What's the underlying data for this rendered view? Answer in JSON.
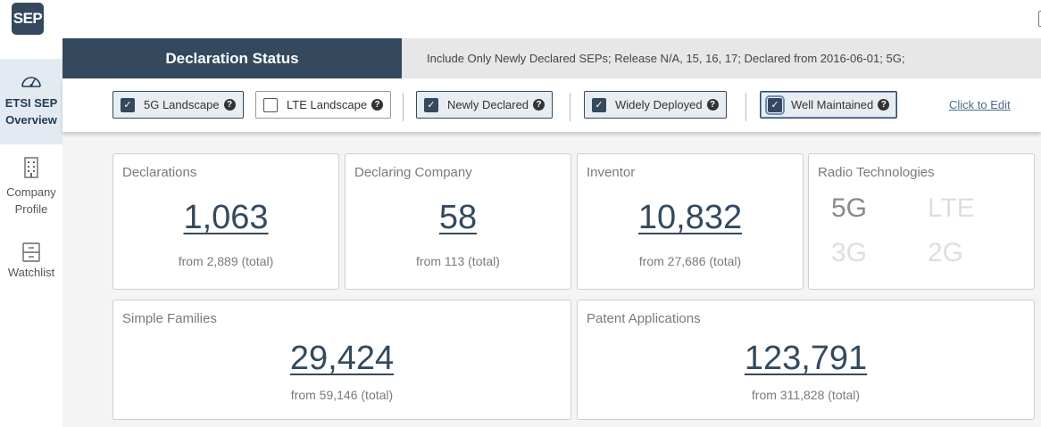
{
  "app": {
    "logo_text": "SEP"
  },
  "sidebar": {
    "items": [
      {
        "label_line1": "ETSI SEP",
        "label_line2": "Overview",
        "icon": "gauge-icon"
      },
      {
        "label_line1": "Company",
        "label_line2": "Profile",
        "icon": "building-icon"
      },
      {
        "label_line1": "Watchlist",
        "label_line2": "",
        "icon": "cabinet-icon"
      }
    ]
  },
  "status": {
    "title": "Declaration Status",
    "description": "Include Only Newly Declared SEPs; Release N/A, 15, 16, 17; Declared from 2016-06-01; 5G;"
  },
  "filters": {
    "chips": [
      {
        "label": "5G Landscape",
        "checked": true
      },
      {
        "label": "LTE Landscape",
        "checked": false
      },
      {
        "label": "Newly Declared",
        "checked": true
      },
      {
        "label": "Widely Deployed",
        "checked": true
      },
      {
        "label": "Well Maintained",
        "checked": true
      }
    ],
    "edit_link": "Click to Edit"
  },
  "cards": {
    "declarations": {
      "label": "Declarations",
      "value": "1,063",
      "sub": "from 2,889 (total)"
    },
    "declaring_company": {
      "label": "Declaring Company",
      "value": "58",
      "sub": "from 113 (total)"
    },
    "inventor": {
      "label": "Inventor",
      "value": "10,832",
      "sub": "from 27,686 (total)"
    },
    "radio": {
      "label": "Radio Technologies",
      "techs": [
        {
          "name": "5G",
          "active": true
        },
        {
          "name": "LTE",
          "active": false
        },
        {
          "name": "3G",
          "active": false
        },
        {
          "name": "2G",
          "active": false
        }
      ]
    },
    "simple_families": {
      "label": "Simple Families",
      "value": "29,424",
      "sub": "from 59,146 (total)"
    },
    "patent_applications": {
      "label": "Patent Applications",
      "value": "123,791",
      "sub": "from 311,828 (total)"
    }
  },
  "colors": {
    "brand": "#34495e",
    "status_bg": "#e7e7e7",
    "link": "#4a6b8e"
  }
}
